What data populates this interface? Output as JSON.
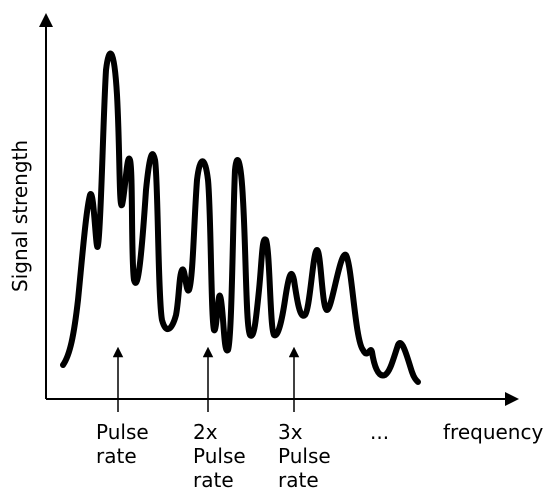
{
  "axes": {
    "y_label": "Signal strength",
    "x_label": "frequency"
  },
  "markers": [
    {
      "lines": [
        "Pulse",
        "rate"
      ]
    },
    {
      "lines": [
        "2x",
        "Pulse",
        "rate"
      ]
    },
    {
      "lines": [
        "3x",
        "Pulse",
        "rate"
      ]
    },
    {
      "lines": [
        "..."
      ]
    }
  ],
  "colors": {
    "stroke": "#000000",
    "background": "#ffffff"
  }
}
